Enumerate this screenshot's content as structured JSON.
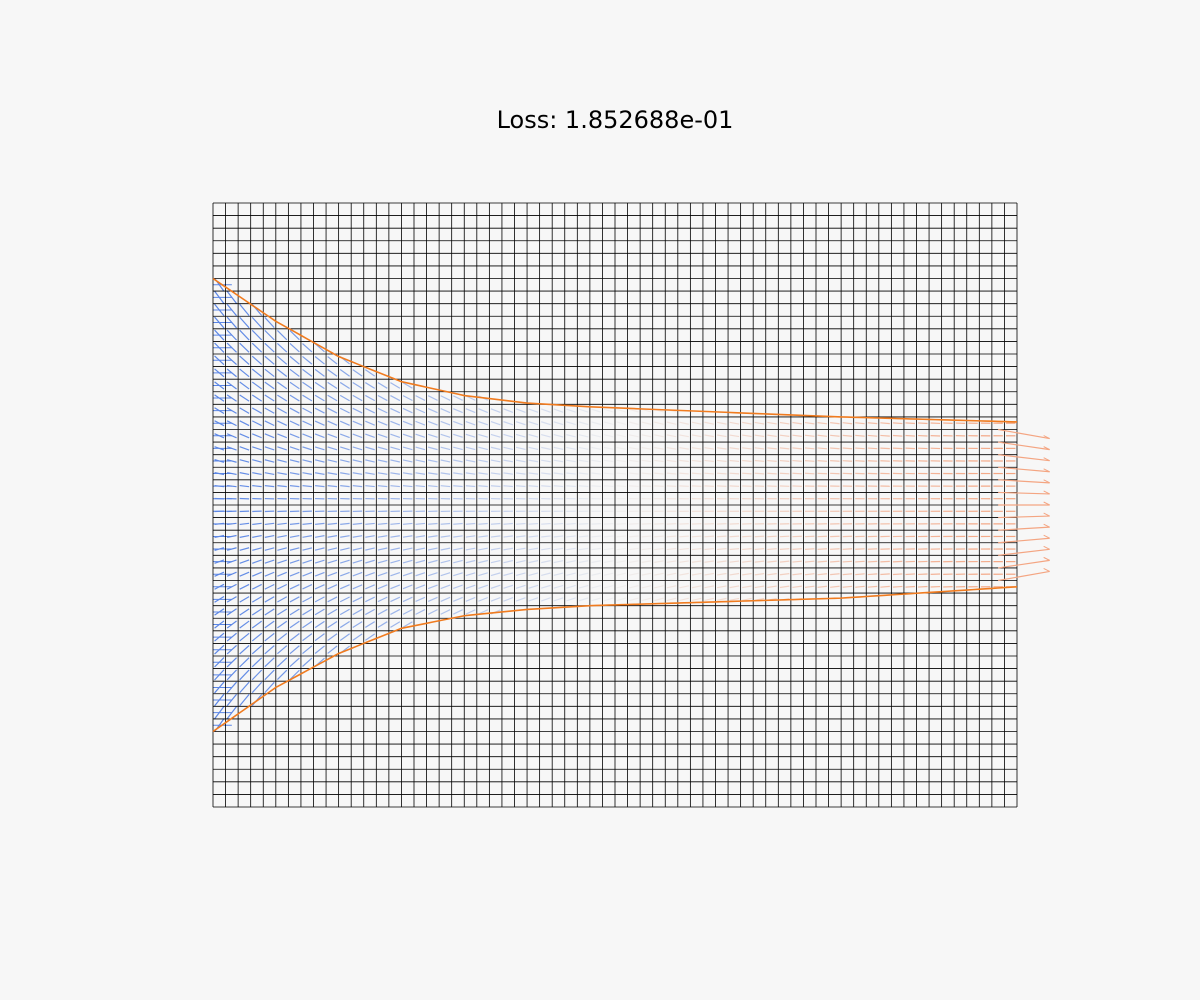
{
  "title": "Loss: 1.852688e-01",
  "colors": {
    "background": "#f7f7f7",
    "grid": "#000000",
    "boundary": "#f07b1f",
    "inflow": "#5b86e5",
    "outflow": "#f4a582"
  },
  "chart_data": {
    "type": "quiver",
    "title": "Loss: 1.852688e-01",
    "grid": true,
    "axes_visible": false,
    "xlim": [
      0,
      64
    ],
    "ylim": [
      0,
      48
    ],
    "grid_cols": 64,
    "grid_rows": 48,
    "boundary_curves": [
      {
        "name": "upper",
        "x": [
          0,
          5,
          10,
          15,
          20,
          25,
          30,
          40,
          50,
          64
        ],
        "y": [
          42,
          38.6,
          35.8,
          33.8,
          32.7,
          32.1,
          31.8,
          31.4,
          31.0,
          30.6
        ]
      },
      {
        "name": "lower",
        "x": [
          0,
          5,
          10,
          15,
          20,
          25,
          30,
          40,
          50,
          64
        ],
        "y": [
          6,
          9.5,
          12.2,
          14.2,
          15.2,
          15.7,
          16.0,
          16.3,
          16.6,
          17.5
        ]
      }
    ],
    "inflow_arrows": {
      "x": 0,
      "y_range": [
        6.5,
        41.5
      ],
      "color": "#5b86e5"
    },
    "outflow_arrows": {
      "x": 64,
      "y_range": [
        18,
        30
      ],
      "color": "#f4a582"
    }
  }
}
